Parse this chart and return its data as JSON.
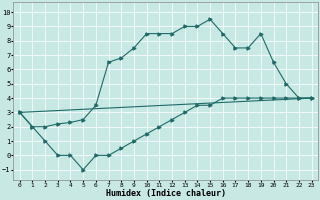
{
  "xlabel": "Humidex (Indice chaleur)",
  "xlim": [
    -0.5,
    23.5
  ],
  "ylim": [
    -1.7,
    10.7
  ],
  "xticks": [
    0,
    1,
    2,
    3,
    4,
    5,
    6,
    7,
    8,
    9,
    10,
    11,
    12,
    13,
    14,
    15,
    16,
    17,
    18,
    19,
    20,
    21,
    22,
    23
  ],
  "yticks": [
    -1,
    0,
    1,
    2,
    3,
    4,
    5,
    6,
    7,
    8,
    9,
    10
  ],
  "bg_color": "#c8e8e4",
  "line_color": "#1e6b68",
  "grid_color": "#ffffff",
  "curve1_x": [
    0,
    1,
    2,
    3,
    4,
    5,
    6,
    7,
    8,
    9,
    10,
    11,
    12,
    13,
    14,
    15,
    16,
    17,
    18,
    19,
    20,
    21,
    22,
    23
  ],
  "curve1_y": [
    3.0,
    2.0,
    1.0,
    0.0,
    0.0,
    -1.0,
    0.0,
    0.0,
    0.5,
    1.0,
    1.5,
    2.0,
    2.5,
    3.0,
    3.5,
    3.5,
    4.0,
    4.0,
    4.0,
    4.0,
    4.0,
    4.0,
    4.0,
    4.0
  ],
  "curve2_x": [
    0,
    1,
    2,
    3,
    4,
    5,
    6,
    7,
    8,
    9,
    10,
    11,
    12,
    13,
    14,
    15,
    16,
    17,
    18,
    19,
    20,
    21,
    22,
    23
  ],
  "curve2_y": [
    3.0,
    2.0,
    2.0,
    2.2,
    2.3,
    2.5,
    3.5,
    6.5,
    6.8,
    7.5,
    8.5,
    8.5,
    8.5,
    9.0,
    9.0,
    9.5,
    8.5,
    7.5,
    7.5,
    8.5,
    6.5,
    5.0,
    4.0,
    4.0
  ],
  "curve3_x": [
    0,
    23
  ],
  "curve3_y": [
    3.0,
    4.0
  ]
}
